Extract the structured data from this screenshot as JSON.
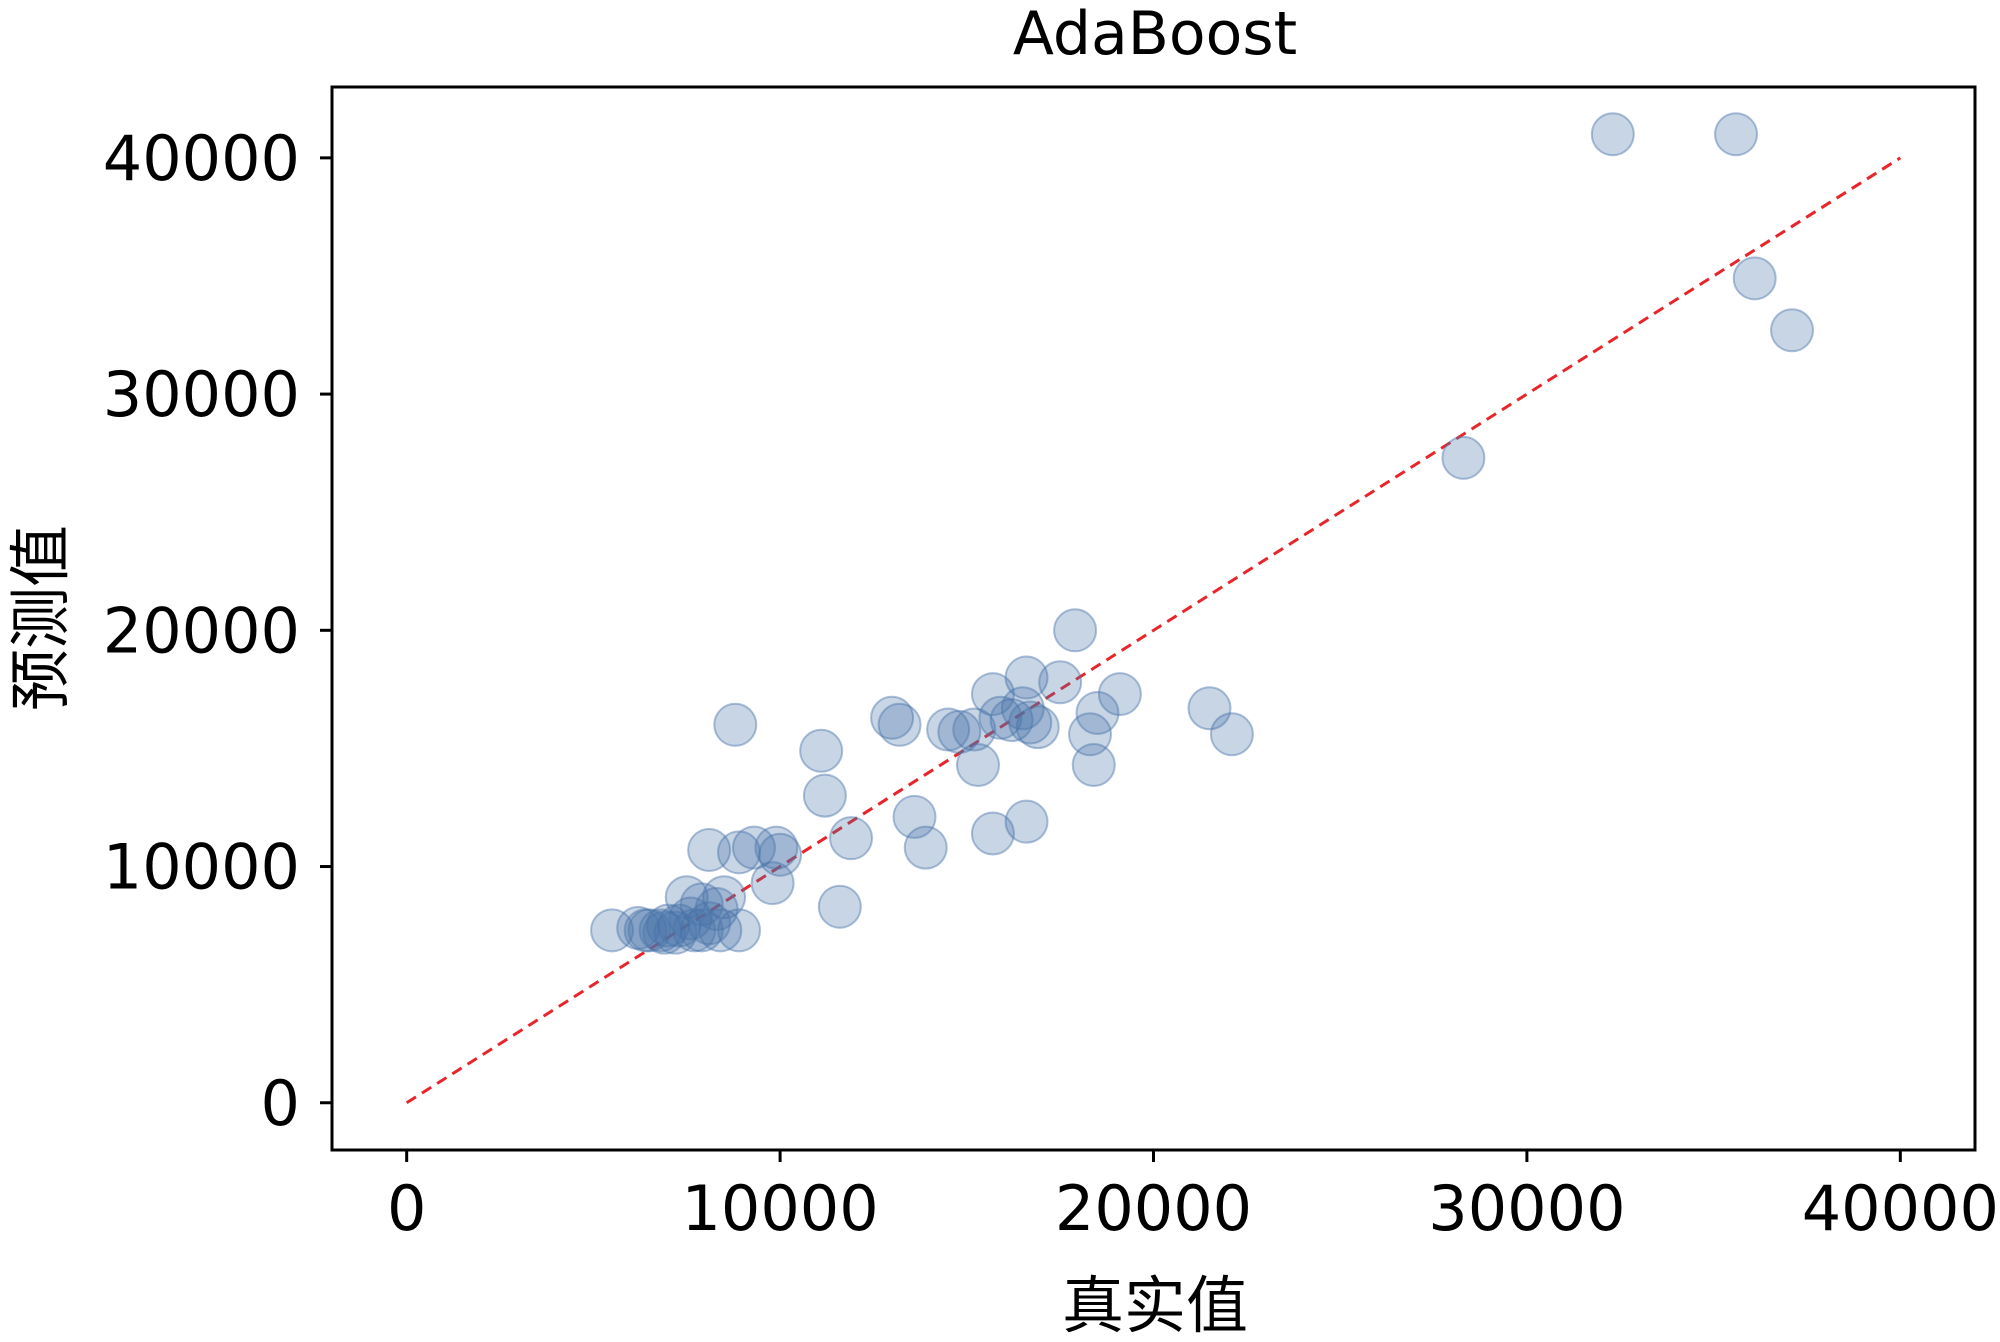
{
  "chart_data": {
    "type": "scatter",
    "title": "AdaBoost",
    "xlabel": "真实值",
    "ylabel": "预测值",
    "xlim": [
      -2000,
      42000
    ],
    "ylim": [
      -2000,
      43000
    ],
    "xticks": [
      0,
      10000,
      20000,
      30000,
      40000
    ],
    "yticks": [
      0,
      10000,
      20000,
      30000,
      40000
    ],
    "xtick_labels": [
      "0",
      "10000",
      "20000",
      "30000",
      "40000"
    ],
    "ytick_labels": [
      "0",
      "10000",
      "20000",
      "30000",
      "40000"
    ],
    "grid": false,
    "marker_color": "#4a74a8",
    "marker_alpha": 0.3,
    "reference_line": {
      "x": [
        0,
        40000
      ],
      "y": [
        0,
        40000
      ],
      "color": "#e8252a",
      "style": "dashed"
    },
    "points": [
      [
        32300,
        41000
      ],
      [
        35600,
        41000
      ],
      [
        36100,
        34900
      ],
      [
        37100,
        32700
      ],
      [
        28300,
        27300
      ],
      [
        17900,
        20000
      ],
      [
        17500,
        17800
      ],
      [
        16600,
        18000
      ],
      [
        15700,
        17300
      ],
      [
        19100,
        17300
      ],
      [
        18500,
        16500
      ],
      [
        16500,
        16700
      ],
      [
        16700,
        16100
      ],
      [
        16900,
        15900
      ],
      [
        16200,
        16200
      ],
      [
        15900,
        16300
      ],
      [
        21500,
        16700
      ],
      [
        22100,
        15600
      ],
      [
        18300,
        15600
      ],
      [
        15200,
        15800
      ],
      [
        14800,
        15700
      ],
      [
        14500,
        15800
      ],
      [
        15300,
        14300
      ],
      [
        18400,
        14300
      ],
      [
        13000,
        16300
      ],
      [
        13200,
        16000
      ],
      [
        8800,
        16000
      ],
      [
        11100,
        14900
      ],
      [
        11200,
        13000
      ],
      [
        13600,
        12100
      ],
      [
        13900,
        10800
      ],
      [
        15700,
        11400
      ],
      [
        16600,
        11900
      ],
      [
        11900,
        11200
      ],
      [
        9900,
        10800
      ],
      [
        10000,
        10500
      ],
      [
        9300,
        10800
      ],
      [
        8900,
        10600
      ],
      [
        8100,
        10700
      ],
      [
        9800,
        9300
      ],
      [
        11600,
        8300
      ],
      [
        8500,
        8700
      ],
      [
        7500,
        8700
      ],
      [
        7900,
        8400
      ],
      [
        8300,
        8200
      ],
      [
        8100,
        7600
      ],
      [
        7600,
        7800
      ],
      [
        7300,
        7500
      ],
      [
        7000,
        7500
      ],
      [
        6800,
        7300
      ],
      [
        6500,
        7300
      ],
      [
        6200,
        7400
      ],
      [
        5500,
        7300
      ],
      [
        7700,
        7300
      ],
      [
        8400,
        7300
      ],
      [
        8900,
        7300
      ],
      [
        7200,
        7200
      ],
      [
        6900,
        7200
      ],
      [
        6400,
        7300
      ],
      [
        7900,
        7300
      ]
    ]
  }
}
